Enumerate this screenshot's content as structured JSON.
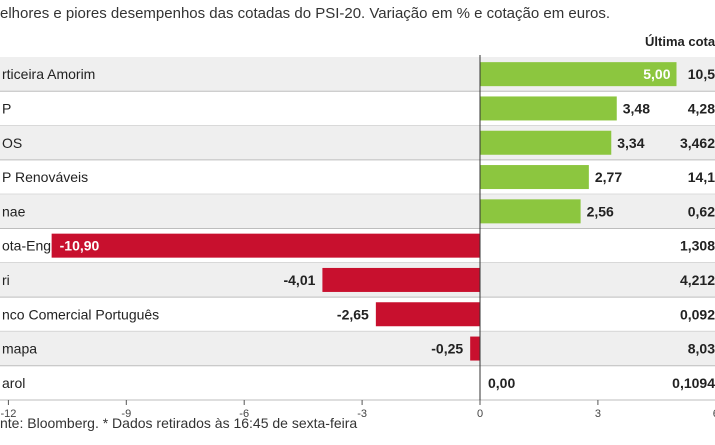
{
  "header": {
    "subtitle": "elhores e piores desempenhos das cotadas do PSI-20. Variação em % e cotação em euros.",
    "price_header": "Última cotação"
  },
  "footer": {
    "source": "nte: Bloomberg.  * Dados retirados às 16:45 de sexta-feira"
  },
  "colors": {
    "positive": "#8cc63f",
    "negative": "#c8102e",
    "row_band": "#efefef",
    "separator": "#bdbdbd"
  },
  "chart_data": {
    "type": "bar",
    "orientation": "horizontal",
    "categories": [
      "rticeira Amorim",
      "P",
      "OS",
      "P Renováveis",
      "nae",
      "ota-Engil",
      "ri",
      "nco Comercial Português",
      "mapa",
      "arol"
    ],
    "values": [
      5.0,
      3.48,
      3.34,
      2.77,
      2.56,
      -10.9,
      -4.01,
      -2.65,
      -0.25,
      0.0
    ],
    "value_labels": [
      "5,00",
      "3,48",
      "3,34",
      "2,77",
      "2,56",
      "-10,90",
      "-4,01",
      "-2,65",
      "-0,25",
      "0,00"
    ],
    "prices": [
      "10,5",
      "4,28",
      "3,462",
      "14,1",
      "0,62",
      "1,308",
      "4,212",
      "0,092",
      "8,03",
      "0,1094"
    ],
    "xlim": [
      -12,
      6
    ],
    "xticks": [
      {
        "value": -12,
        "label": "-12"
      },
      {
        "value": -9,
        "label": "-9"
      },
      {
        "value": -6,
        "label": "-6"
      },
      {
        "value": -3,
        "label": "-3"
      },
      {
        "value": 0,
        "label": "0"
      },
      {
        "value": 3,
        "label": "3"
      },
      {
        "value": 6,
        "label": "6"
      }
    ],
    "grid": false,
    "legend": "none"
  }
}
